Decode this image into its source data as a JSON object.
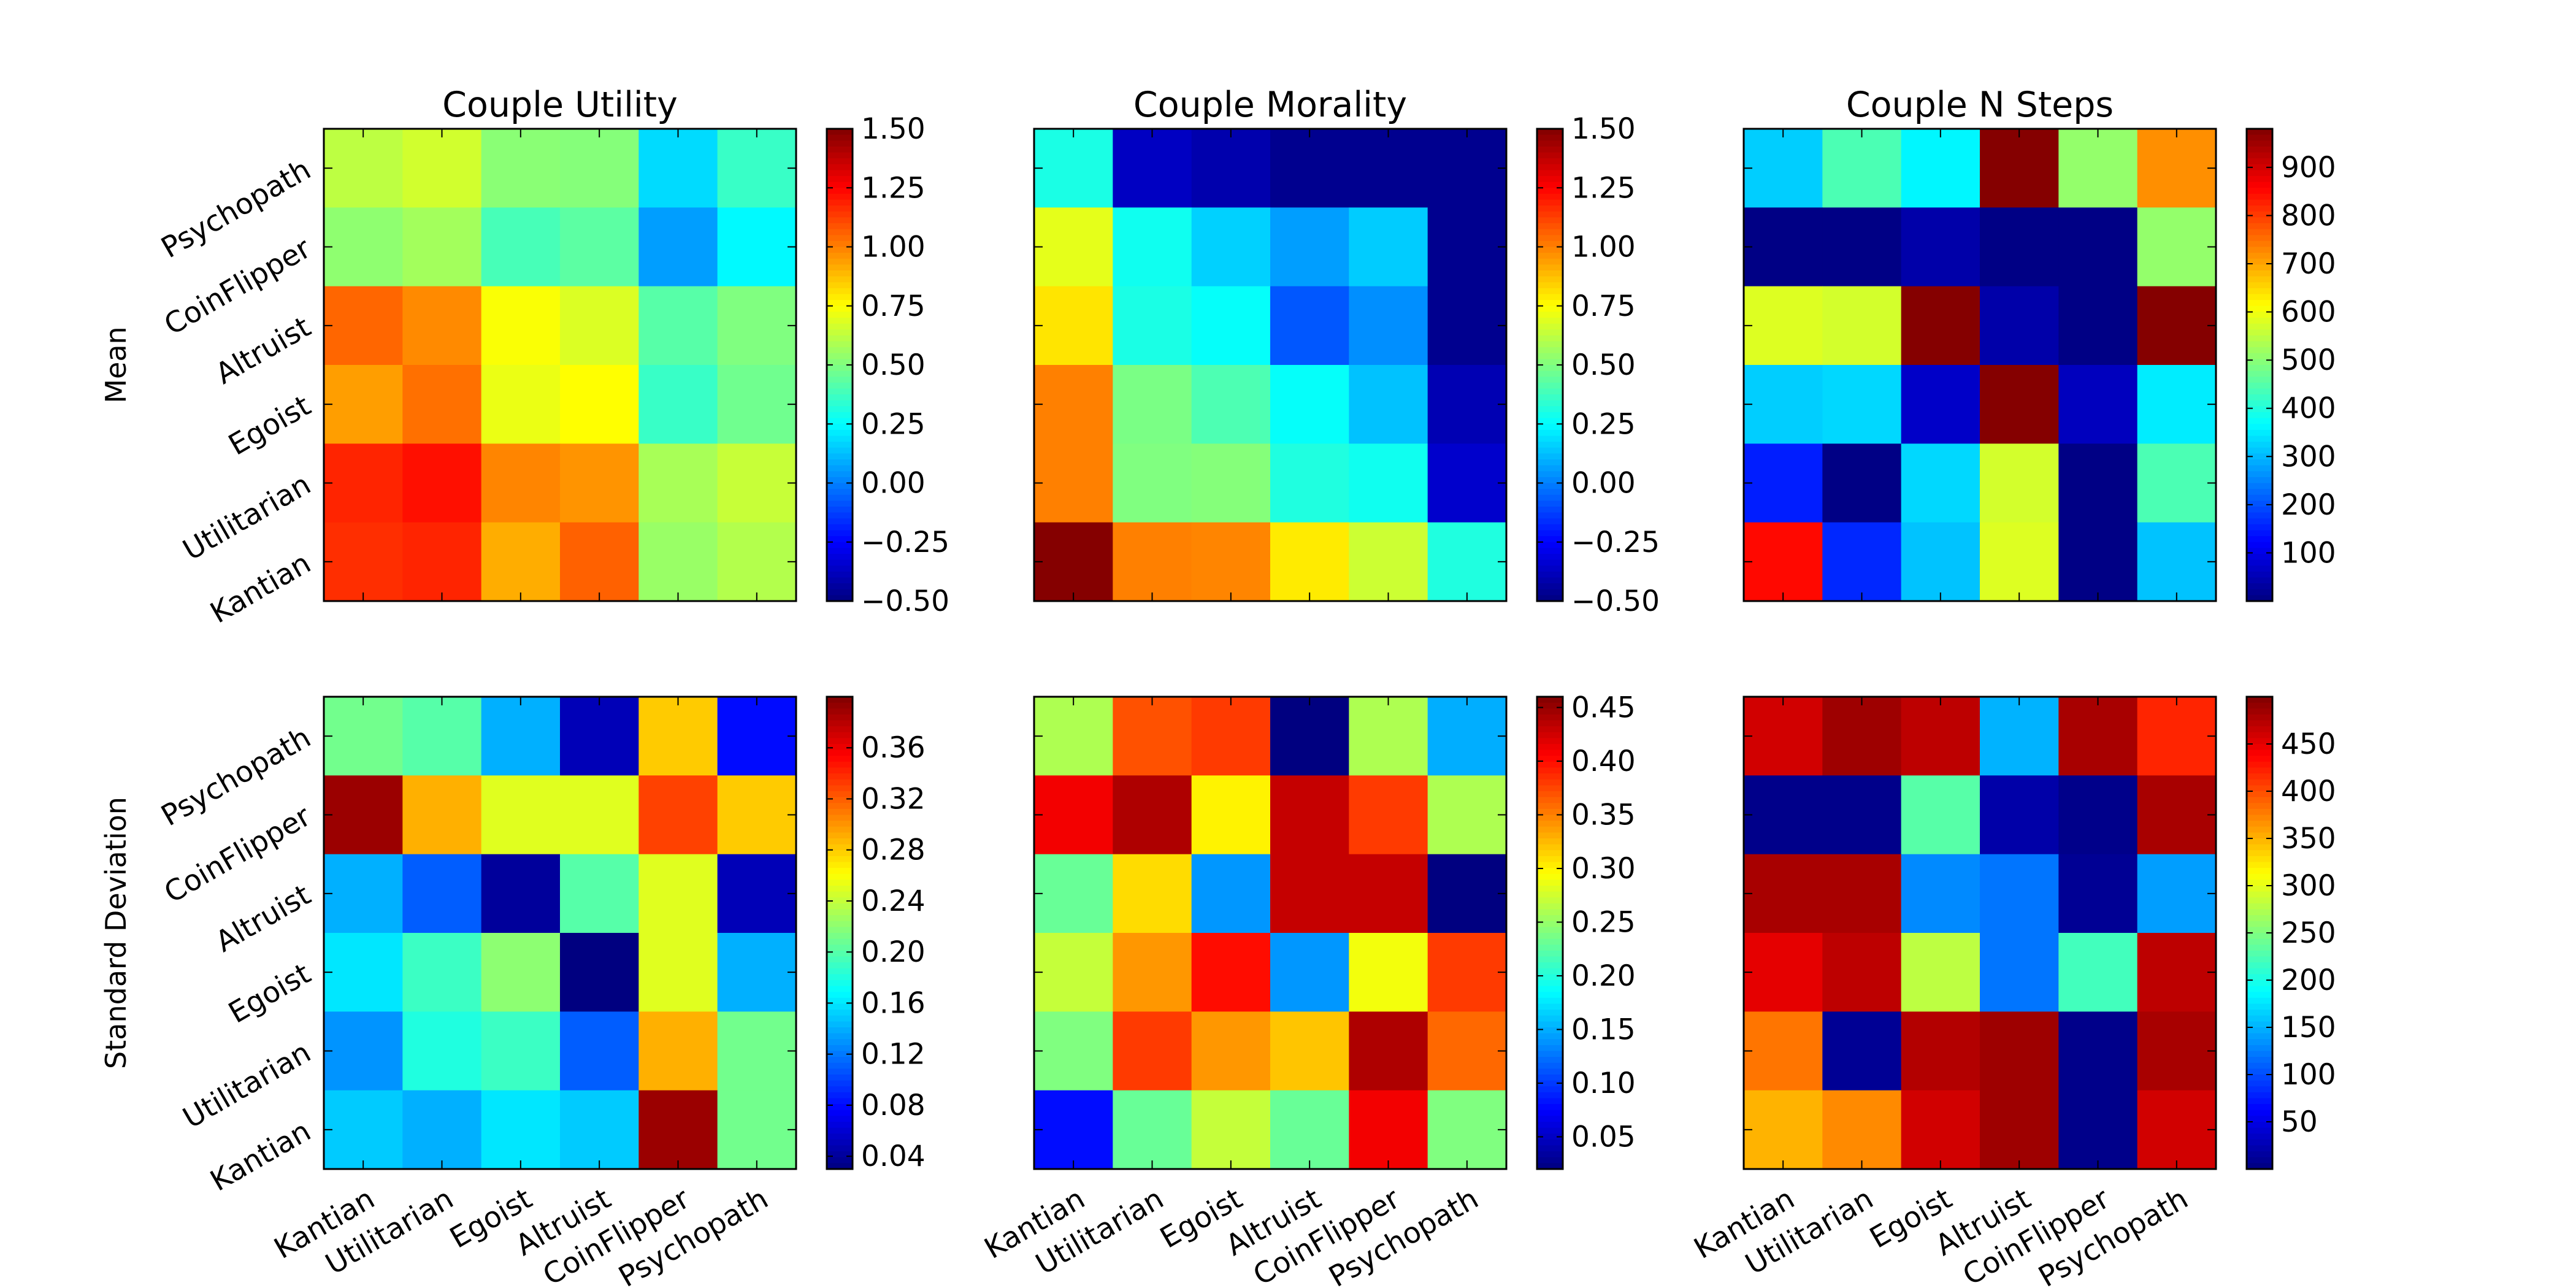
{
  "chart_data": {
    "type": "heatmap",
    "colormap": "jet",
    "categories": [
      "Kantian",
      "Utilitarian",
      "Egoist",
      "Altruist",
      "CoinFlipper",
      "Psychopath"
    ],
    "y_order_bottom_to_top": [
      "Kantian",
      "Utilitarian",
      "Egoist",
      "Altruist",
      "CoinFlipper",
      "Psychopath"
    ],
    "row_labels": [
      "Mean",
      "Standard Deviation"
    ],
    "panels": [
      {
        "title": "Couple Utility",
        "stat": "Mean",
        "vmin": -0.5,
        "vmax": 1.5,
        "cbar_ticks": [
          -0.5,
          -0.25,
          0,
          0.25,
          0.5,
          0.75,
          1.0,
          1.25,
          1.5
        ],
        "cbar_tick_labels": [
          "−0.50",
          "−0.25",
          "0.00",
          "0.25",
          "0.50",
          "0.75",
          "1.00",
          "1.25",
          "1.50"
        ],
        "values_top_to_bottom": [
          [
            0.62,
            0.66,
            0.52,
            0.51,
            0.18,
            0.36
          ],
          [
            0.53,
            0.57,
            0.39,
            0.43,
            0.06,
            0.24
          ],
          [
            1.05,
            0.98,
            0.74,
            0.68,
            0.42,
            0.5
          ],
          [
            0.94,
            1.03,
            0.71,
            0.75,
            0.36,
            0.47
          ],
          [
            1.18,
            1.22,
            0.99,
            0.96,
            0.58,
            0.64
          ],
          [
            1.16,
            1.18,
            0.91,
            1.06,
            0.55,
            0.6
          ]
        ]
      },
      {
        "title": "Couple Morality",
        "stat": "Mean",
        "vmin": -0.5,
        "vmax": 1.5,
        "cbar_ticks": [
          -0.5,
          -0.25,
          0,
          0.25,
          0.5,
          0.75,
          1.0,
          1.25,
          1.5
        ],
        "cbar_tick_labels": [
          "−0.50",
          "−0.25",
          "0.00",
          "0.25",
          "0.50",
          "0.75",
          "1.00",
          "1.25",
          "1.50"
        ],
        "values_top_to_bottom": [
          [
            0.3,
            -0.37,
            -0.41,
            -0.47,
            -0.47,
            -0.47
          ],
          [
            0.7,
            0.28,
            0.16,
            0.06,
            0.15,
            -0.47
          ],
          [
            0.8,
            0.3,
            0.26,
            -0.08,
            0.03,
            -0.47
          ],
          [
            1.0,
            0.49,
            0.4,
            0.26,
            0.13,
            -0.4
          ],
          [
            1.0,
            0.5,
            0.51,
            0.31,
            0.28,
            -0.35
          ],
          [
            1.49,
            1.0,
            0.99,
            0.79,
            0.65,
            0.31
          ]
        ]
      },
      {
        "title": "Couple N Steps",
        "stat": "Mean",
        "vmin": 0,
        "vmax": 980,
        "cbar_ticks": [
          100,
          200,
          300,
          400,
          500,
          600,
          700,
          800,
          900
        ],
        "cbar_tick_labels": [
          "100",
          "200",
          "300",
          "400",
          "500",
          "600",
          "700",
          "800",
          "900"
        ],
        "values_top_to_bottom": [
          [
            320,
            440,
            360,
            975,
            510,
            720
          ],
          [
            5,
            5,
            40,
            5,
            5,
            510
          ],
          [
            580,
            570,
            975,
            40,
            5,
            975
          ],
          [
            320,
            330,
            70,
            975,
            60,
            350
          ],
          [
            150,
            5,
            330,
            570,
            5,
            440
          ],
          [
            850,
            160,
            310,
            580,
            5,
            310
          ]
        ]
      },
      {
        "title": "",
        "stat": "Standard Deviation",
        "vmin": 0.03,
        "vmax": 0.4,
        "cbar_ticks": [
          0.04,
          0.08,
          0.12,
          0.16,
          0.2,
          0.24,
          0.28,
          0.32,
          0.36
        ],
        "cbar_tick_labels": [
          "0.04",
          "0.08",
          "0.12",
          "0.16",
          "0.20",
          "0.24",
          "0.28",
          "0.32",
          "0.36"
        ],
        "values_top_to_bottom": [
          [
            0.21,
            0.2,
            0.14,
            0.05,
            0.28,
            0.08
          ],
          [
            0.39,
            0.29,
            0.25,
            0.25,
            0.33,
            0.28
          ],
          [
            0.14,
            0.11,
            0.04,
            0.2,
            0.25,
            0.05
          ],
          [
            0.16,
            0.19,
            0.22,
            0.03,
            0.25,
            0.14
          ],
          [
            0.13,
            0.18,
            0.19,
            0.11,
            0.29,
            0.21
          ],
          [
            0.15,
            0.14,
            0.16,
            0.15,
            0.39,
            0.21
          ]
        ]
      },
      {
        "title": "",
        "stat": "Standard Deviation",
        "vmin": 0.02,
        "vmax": 0.46,
        "cbar_ticks": [
          0.05,
          0.1,
          0.15,
          0.2,
          0.25,
          0.3,
          0.35,
          0.4,
          0.45
        ],
        "cbar_tick_labels": [
          "0.05",
          "0.10",
          "0.15",
          "0.20",
          "0.25",
          "0.30",
          "0.35",
          "0.40",
          "0.45"
        ],
        "values_top_to_bottom": [
          [
            0.26,
            0.37,
            0.38,
            0.02,
            0.26,
            0.15
          ],
          [
            0.41,
            0.44,
            0.3,
            0.43,
            0.38,
            0.26
          ],
          [
            0.23,
            0.31,
            0.14,
            0.43,
            0.43,
            0.02
          ],
          [
            0.27,
            0.34,
            0.4,
            0.14,
            0.29,
            0.38
          ],
          [
            0.24,
            0.38,
            0.34,
            0.32,
            0.44,
            0.36
          ],
          [
            0.08,
            0.23,
            0.27,
            0.23,
            0.41,
            0.24
          ]
        ]
      },
      {
        "title": "",
        "stat": "Standard Deviation",
        "vmin": 0,
        "vmax": 500,
        "cbar_ticks": [
          50,
          100,
          150,
          200,
          250,
          300,
          350,
          400,
          450
        ],
        "cbar_tick_labels": [
          "50",
          "100",
          "150",
          "200",
          "250",
          "300",
          "350",
          "400",
          "450"
        ],
        "values_top_to_bottom": [
          [
            460,
            485,
            470,
            150,
            480,
            420
          ],
          [
            5,
            5,
            230,
            20,
            5,
            480
          ],
          [
            480,
            480,
            130,
            120,
            10,
            140
          ],
          [
            450,
            470,
            280,
            120,
            220,
            470
          ],
          [
            380,
            10,
            475,
            485,
            5,
            480
          ],
          [
            350,
            370,
            460,
            485,
            5,
            460
          ]
        ]
      }
    ]
  }
}
